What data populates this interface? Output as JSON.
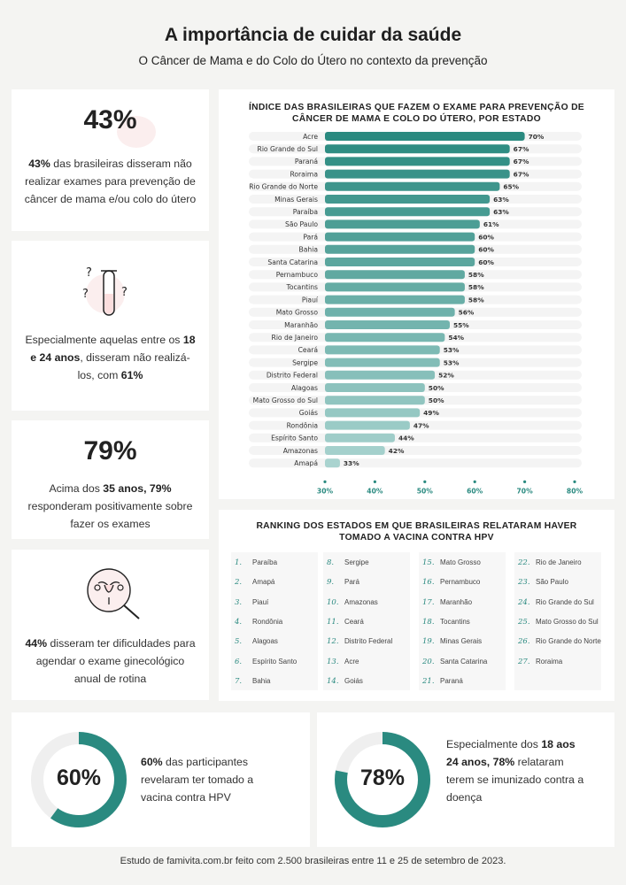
{
  "header": {
    "title": "A importância de cuidar da saúde",
    "subtitle": "O Câncer de Mama e do Colo do Útero no contexto da prevenção"
  },
  "cards": {
    "c1": {
      "pct": "43%",
      "t1": "43%",
      "t2": " das brasileiras disseram não realizar exames para prevenção de câncer de mama e/ou colo do útero"
    },
    "c2": {
      "t1": "Especialmente aquelas entre os ",
      "t2": "18 e 24 anos",
      "t3": ", disseram não realizá-los, com ",
      "t4": "61%",
      "icon": "test-tube-question-icon"
    },
    "c3": {
      "pct": "79%",
      "t1": "Acima dos ",
      "t2": "35 anos, 79%",
      "t3": " responderam positivamente sobre fazer os exames"
    },
    "c4": {
      "t1": "44%",
      "t2": " disseram ter dificuldades para agendar o exame ginecológico anual de rotina",
      "icon": "uterus-magnifier-icon"
    }
  },
  "donuts": {
    "d1": {
      "label": "60%",
      "value": 60,
      "t1": "60%",
      "t2": " das participantes revelaram  ter tomado a vacina contra HPV"
    },
    "d2": {
      "label": "78%",
      "value": 78,
      "t1": "Especialmente dos ",
      "t2": "18 aos 24 anos, 78%",
      "t3": " relataram terem se imunizado contra a doença"
    }
  },
  "colors": {
    "teal": "#2a8a80",
    "light_teal": "#a9d3cf",
    "track": "#efefef"
  },
  "chart_data": {
    "type": "bar",
    "orientation": "horizontal",
    "title": "ÍNDICE DAS BRASILEIRAS QUE FAZEM O EXAME PARA PREVENÇÃO DE CÂNCER DE MAMA E COLO DO ÚTERO, POR ESTADO",
    "categories": [
      "Acre",
      "Rio Grande do Sul",
      "Paraná",
      "Roraima",
      "Rio Grande do Norte",
      "Minas Gerais",
      "Paraíba",
      "São Paulo",
      "Pará",
      "Bahia",
      "Santa Catarina",
      "Pernambuco",
      "Tocantins",
      "Piauí",
      "Mato Grosso",
      "Maranhão",
      "Rio de Janeiro",
      "Ceará",
      "Sergipe",
      "Distrito Federal",
      "Alagoas",
      "Mato Grosso do Sul",
      "Goiás",
      "Rondônia",
      "Espírito Santo",
      "Amazonas",
      "Amapá"
    ],
    "values": [
      70,
      67,
      67,
      67,
      65,
      63,
      63,
      61,
      60,
      60,
      60,
      58,
      58,
      58,
      56,
      55,
      54,
      53,
      53,
      52,
      50,
      50,
      49,
      47,
      44,
      42,
      33
    ],
    "value_labels": [
      "70%",
      "67%",
      "67%",
      "67%",
      "65%",
      "63%",
      "63%",
      "61%",
      "60%",
      "60%",
      "60%",
      "58%",
      "58%",
      "58%",
      "56%",
      "55%",
      "54%",
      "53%",
      "53%",
      "52%",
      "50%",
      "50%",
      "49%",
      "47%",
      "44%",
      "42%",
      "33%"
    ],
    "xlim": [
      30,
      80
    ],
    "ticks": [
      30,
      40,
      50,
      60,
      70,
      80
    ],
    "tick_labels": [
      "30%",
      "40%",
      "50%",
      "60%",
      "70%",
      "80%"
    ]
  },
  "ranking": {
    "title": "RANKING DOS ESTADOS EM QUE BRASILEIRAS RELATARAM HAVER TOMADO A VACINA CONTRA HPV",
    "items": [
      {
        "n": "1.",
        "s": "Paraíba"
      },
      {
        "n": "2.",
        "s": "Amapá"
      },
      {
        "n": "3.",
        "s": "Piauí"
      },
      {
        "n": "4.",
        "s": "Rondônia"
      },
      {
        "n": "5.",
        "s": "Alagoas"
      },
      {
        "n": "6.",
        "s": "Espírito Santo"
      },
      {
        "n": "7.",
        "s": "Bahia"
      },
      {
        "n": "8.",
        "s": "Sergipe"
      },
      {
        "n": "9.",
        "s": "Pará"
      },
      {
        "n": "10.",
        "s": "Amazonas"
      },
      {
        "n": "11.",
        "s": "Ceará"
      },
      {
        "n": "12.",
        "s": "Distrito Federal"
      },
      {
        "n": "13.",
        "s": "Acre"
      },
      {
        "n": "14.",
        "s": "Goiás"
      },
      {
        "n": "15.",
        "s": "Mato Grosso"
      },
      {
        "n": "16.",
        "s": "Pernambuco"
      },
      {
        "n": "17.",
        "s": "Maranhão"
      },
      {
        "n": "18.",
        "s": "Tocantins"
      },
      {
        "n": "19.",
        "s": "Minas Gerais"
      },
      {
        "n": "20.",
        "s": "Santa Catarina"
      },
      {
        "n": "21.",
        "s": "Paraná"
      },
      {
        "n": "22.",
        "s": "Rio de Janeiro"
      },
      {
        "n": "23.",
        "s": "São Paulo"
      },
      {
        "n": "24.",
        "s": "Rio Grande do Sul"
      },
      {
        "n": "25.",
        "s": "Mato Grosso do Sul"
      },
      {
        "n": "26.",
        "s": "Rio Grande do Norte"
      },
      {
        "n": "27.",
        "s": "Roraima"
      }
    ]
  },
  "footer": "Estudo de famivita.com.br feito com 2.500 brasileiras entre 11 e 25 de setembro de 2023."
}
